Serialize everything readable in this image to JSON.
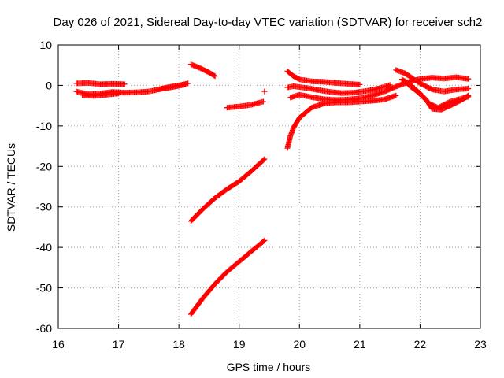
{
  "chart_data": {
    "type": "scatter",
    "title": "Day 026 of 2021, Sidereal Day-to-day VTEC variation (SDTVAR) for receiver sch2",
    "xlabel": "GPS time / hours",
    "ylabel": "SDTVAR / TECUs",
    "xlim": [
      16,
      23
    ],
    "ylim": [
      -60,
      10
    ],
    "xticks": [
      "16",
      "17",
      "18",
      "19",
      "20",
      "21",
      "22",
      "23"
    ],
    "yticks": [
      "10",
      "0",
      "-10",
      "-20",
      "-30",
      "-40",
      "-50",
      "-60"
    ],
    "grid": true,
    "marker": "plus",
    "color": "#ff0000",
    "series": [
      {
        "x": [
          16.3,
          16.5,
          16.7,
          16.9,
          17.1
        ],
        "y": [
          0.5,
          0.6,
          0.3,
          0.4,
          0.3
        ]
      },
      {
        "x": [
          16.3,
          16.5,
          16.7,
          16.9,
          17.1,
          17.3,
          17.5,
          17.7,
          17.9,
          18.1
        ],
        "y": [
          -1.5,
          -2.2,
          -2.0,
          -1.6,
          -1.8,
          -1.7,
          -1.5,
          -0.9,
          -0.4,
          0.2
        ]
      },
      {
        "x": [
          16.4,
          16.6,
          16.8,
          17.0
        ],
        "y": [
          -2.4,
          -2.6,
          -2.3,
          -2.0
        ]
      },
      {
        "x": [
          17.6,
          17.8,
          18.0,
          18.15
        ],
        "y": [
          -1.2,
          -0.5,
          0.0,
          0.5
        ]
      },
      {
        "x": [
          18.2,
          18.35,
          18.5,
          18.6
        ],
        "y": [
          5.2,
          4.3,
          3.2,
          2.3
        ]
      },
      {
        "x": [
          18.8,
          19.0,
          19.2,
          19.4
        ],
        "y": [
          -5.5,
          -5.2,
          -4.8,
          -4.0
        ]
      },
      {
        "x": [
          19.42
        ],
        "y": [
          -1.5
        ]
      },
      {
        "x": [
          18.2,
          18.4,
          18.6,
          18.8,
          19.0,
          19.2,
          19.42
        ],
        "y": [
          -33.5,
          -30.5,
          -27.8,
          -25.6,
          -23.7,
          -21.2,
          -18.2
        ]
      },
      {
        "x": [
          18.2,
          18.4,
          18.6,
          18.8,
          19.0,
          19.2,
          19.42
        ],
        "y": [
          -56.5,
          -52.5,
          -49.0,
          -46.0,
          -43.5,
          -41.0,
          -38.3
        ]
      },
      {
        "x": [
          19.8,
          19.9,
          20.0,
          20.2,
          20.4,
          20.6,
          20.8,
          21.0
        ],
        "y": [
          3.5,
          2.3,
          1.5,
          1.0,
          0.9,
          0.6,
          0.4,
          0.2
        ]
      },
      {
        "x": [
          19.8,
          19.9,
          20.1,
          20.3,
          20.5,
          20.7,
          20.9,
          21.1,
          21.3,
          21.5
        ],
        "y": [
          -0.5,
          -0.2,
          -0.6,
          -1.1,
          -1.6,
          -1.9,
          -1.8,
          -1.4,
          -0.8,
          0.1
        ]
      },
      {
        "x": [
          19.85,
          20.0,
          20.2,
          20.4,
          20.6,
          20.8,
          21.0,
          21.2,
          21.4,
          21.6,
          21.8,
          22.0,
          22.2,
          22.4,
          22.6,
          22.8
        ],
        "y": [
          -3.0,
          -2.3,
          -2.9,
          -3.4,
          -3.6,
          -3.5,
          -3.2,
          -2.5,
          -1.6,
          -0.3,
          0.8,
          1.6,
          1.9,
          1.7,
          2.0,
          1.6
        ]
      },
      {
        "x": [
          19.8,
          19.85,
          19.9,
          20.0,
          20.2,
          20.4,
          20.6,
          20.8,
          21.0,
          21.2,
          21.4,
          21.6
        ],
        "y": [
          -15.5,
          -12.5,
          -10.5,
          -8.0,
          -5.5,
          -4.5,
          -4.2,
          -4.2,
          -4.0,
          -3.8,
          -3.5,
          -2.5
        ]
      },
      {
        "x": [
          21.6,
          21.75,
          21.9,
          22.0,
          22.2,
          22.4,
          22.6,
          22.8
        ],
        "y": [
          3.8,
          3.0,
          1.5,
          0.5,
          -1.0,
          -1.5,
          -1.0,
          -0.8
        ]
      },
      {
        "x": [
          21.7,
          21.85,
          22.0,
          22.15,
          22.3,
          22.5,
          22.7,
          22.8
        ],
        "y": [
          1.5,
          0.0,
          -2.0,
          -4.5,
          -5.5,
          -4.0,
          -3.2,
          -2.8
        ]
      },
      {
        "x": [
          21.8,
          21.95,
          22.1,
          22.2,
          22.35,
          22.5,
          22.7,
          22.8
        ],
        "y": [
          0.2,
          -1.5,
          -3.5,
          -5.8,
          -6.0,
          -5.0,
          -3.5,
          -2.5
        ]
      }
    ]
  }
}
